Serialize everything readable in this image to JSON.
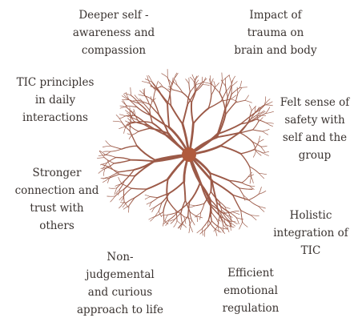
{
  "diagram": {
    "center_color": "#b05a3c",
    "branch_color": "#9c5a48",
    "labels": {
      "deeper_self": "Deeper self -\nawareness and\ncompassion",
      "impact_trauma": "Impact of\ntrauma on\nbrain and body",
      "felt_safety": "Felt sense of\nsafety with\nself and the\ngroup",
      "holistic": "Holistic\nintegration of\nTIC",
      "emotional_regulation": "Efficient\nemotional\nregulation",
      "non_judgemental": "Non-\njudgemental\nand curious\napproach to life",
      "stronger_connection": "Stronger\nconnection and\ntrust with\nothers",
      "tic_principles": "TIC principles\nin daily\ninteractions"
    }
  }
}
